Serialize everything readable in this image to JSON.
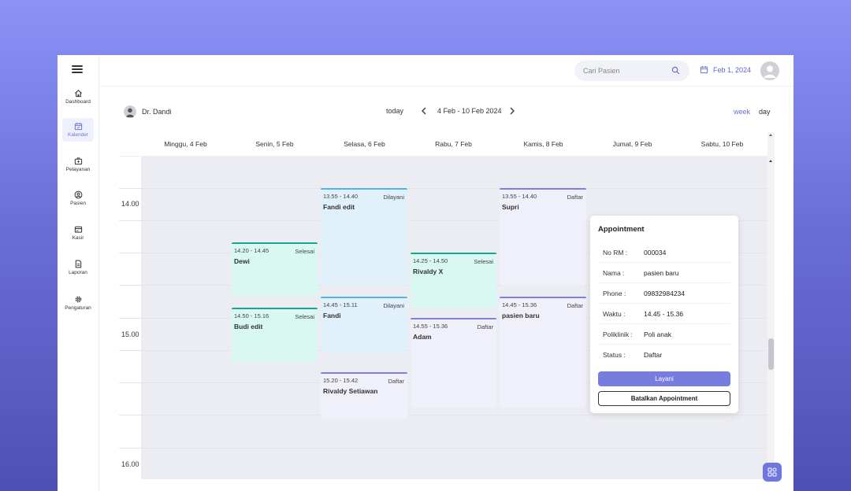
{
  "sidebar": {
    "items": [
      {
        "label": "Dashboard",
        "icon": "home-icon"
      },
      {
        "label": "Kalender",
        "icon": "calendar-icon"
      },
      {
        "label": "Pelayanan",
        "icon": "medical-bag-icon"
      },
      {
        "label": "Pasien",
        "icon": "user-circle-icon"
      },
      {
        "label": "Kasir",
        "icon": "cash-register-icon"
      },
      {
        "label": "Laporan",
        "icon": "document-icon"
      },
      {
        "label": "Pengaturan",
        "icon": "gear-icon"
      }
    ],
    "active": "Kalender"
  },
  "header": {
    "search_placeholder": "Cari Pasien",
    "date": "Feb 1, 2024"
  },
  "toolbar": {
    "doctor": "Dr. Dandi",
    "today": "today",
    "range": "4 Feb - 10 Feb 2024",
    "view_week": "week",
    "view_day": "day"
  },
  "days": [
    "Minggu, 4 Feb",
    "Senin, 5 Feb",
    "Selasa, 6 Feb",
    "Rabu, 7 Feb",
    "Kamis, 8 Feb",
    "Jumat, 9 Feb",
    "Sabtu, 10 Feb"
  ],
  "times": [
    "14.00",
    "15.00",
    "16.00"
  ],
  "events": [
    {
      "time": "14.20 - 14.45",
      "status": "Selesai",
      "name": "Dewi"
    },
    {
      "time": "14.50 - 15.16",
      "status": "Selesai",
      "name": "Budi edit"
    },
    {
      "time": "13.55 - 14.40",
      "status": "Dilayani",
      "name": "Fandi edit"
    },
    {
      "time": "14.45 - 15.11",
      "status": "Dilayani",
      "name": "Fandi"
    },
    {
      "time": "15.20 - 15.42",
      "status": "Daftar",
      "name": "Rivaldy Setiawan"
    },
    {
      "time": "14.25 - 14.50",
      "status": "Selesai",
      "name": "Rivaldy X"
    },
    {
      "time": "14.55 - 15.36",
      "status": "Daftar",
      "name": "Adam"
    },
    {
      "time": "13.55 - 14.40",
      "status": "Daftar",
      "name": "Supri"
    },
    {
      "time": "14.45 - 15.36",
      "status": "Daftar",
      "name": "pasien baru"
    }
  ],
  "appointment": {
    "title": "Appointment",
    "rows": [
      {
        "label": "No RM :",
        "value": "000034"
      },
      {
        "label": "Nama :",
        "value": "pasien baru"
      },
      {
        "label": "Phone :",
        "value": "09832984234"
      },
      {
        "label": "Waktu :",
        "value": "14.45 - 15.36"
      },
      {
        "label": "Poliklinik :",
        "value": "Poli anak"
      },
      {
        "label": "Status :",
        "value": "Daftar"
      }
    ],
    "primary_button": "Layani",
    "secondary_button": "Batalkan Appointment"
  },
  "colors": {
    "accent": "#6f76de",
    "selesai": "#18a58b",
    "dilayani": "#4fb3e6",
    "daftar": "#7b80d8"
  }
}
